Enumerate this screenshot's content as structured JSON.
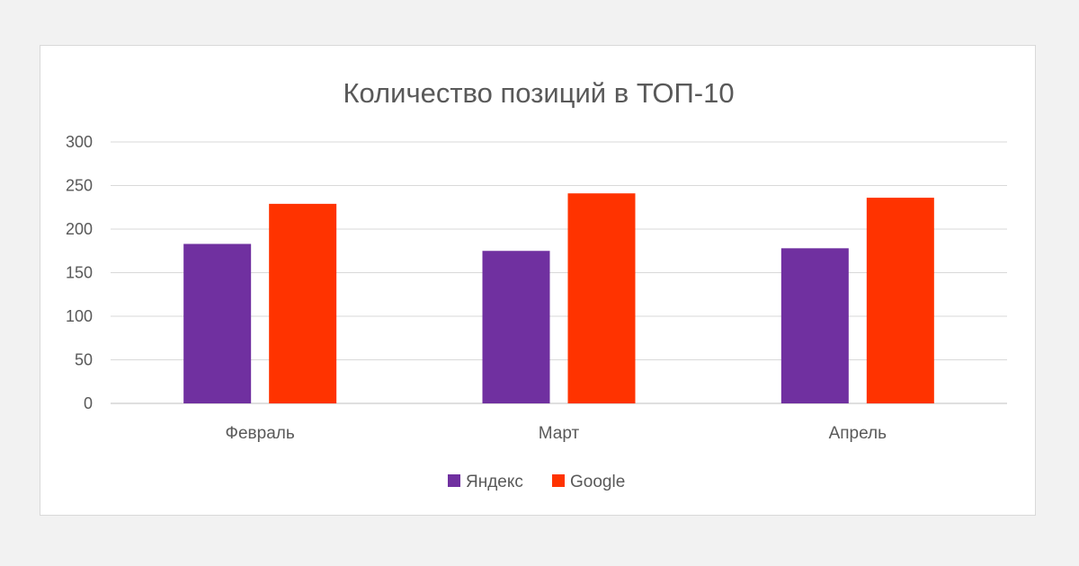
{
  "chart_data": {
    "type": "bar",
    "title": "Количество позиций в ТОП-10",
    "categories": [
      "Февраль",
      "Март",
      "Апрель"
    ],
    "series": [
      {
        "name": "Яндекс",
        "values": [
          183,
          175,
          178
        ],
        "color": "#7030a0"
      },
      {
        "name": "Google",
        "values": [
          229,
          241,
          236
        ],
        "color": "#ff3300"
      }
    ],
    "ylim": [
      0,
      300
    ],
    "yticks": [
      0,
      50,
      100,
      150,
      200,
      250,
      300
    ],
    "grid": true,
    "legend_position": "bottom"
  }
}
